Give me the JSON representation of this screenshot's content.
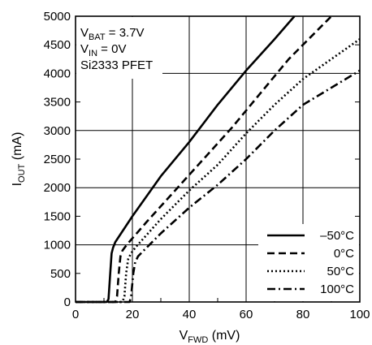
{
  "chart_data": {
    "type": "line",
    "xlabel": {
      "main": "V",
      "sub": "FWD",
      "unit": " (mV)"
    },
    "ylabel": {
      "main": "I",
      "sub": "OUT",
      "unit": " (mA)"
    },
    "xlim": [
      0,
      100
    ],
    "ylim": [
      0,
      5000
    ],
    "x_ticks": [
      "0",
      "20",
      "40",
      "60",
      "80",
      "100"
    ],
    "y_ticks": [
      "0",
      "500",
      "1000",
      "1500",
      "2000",
      "2500",
      "3000",
      "3500",
      "4000",
      "4500",
      "5000"
    ],
    "grid": true,
    "legend_position": "bottom-right",
    "annotations": [
      {
        "main": "V",
        "sub": "BAT",
        "rest": " = 3.7V"
      },
      {
        "main": "V",
        "sub": "IN",
        "rest": " = 0V"
      },
      {
        "main": "Si2333 PFET",
        "sub": "",
        "rest": ""
      }
    ],
    "series": [
      {
        "name": "–50°C",
        "style": "solid",
        "points": [
          [
            0,
            0
          ],
          [
            11,
            0
          ],
          [
            11.6,
            50
          ],
          [
            12.2,
            500
          ],
          [
            12.7,
            850
          ],
          [
            13.2,
            950
          ],
          [
            14,
            1050
          ],
          [
            20,
            1500
          ],
          [
            30,
            2200
          ],
          [
            40,
            2800
          ],
          [
            50,
            3450
          ],
          [
            60,
            4050
          ],
          [
            70,
            4600
          ],
          [
            77,
            5000
          ]
        ]
      },
      {
        "name": "0°C",
        "style": "dash",
        "points": [
          [
            0,
            0
          ],
          [
            14,
            0
          ],
          [
            14.6,
            100
          ],
          [
            15.2,
            500
          ],
          [
            15.8,
            800
          ],
          [
            16.5,
            900
          ],
          [
            18,
            1000
          ],
          [
            25,
            1400
          ],
          [
            35,
            1950
          ],
          [
            45,
            2500
          ],
          [
            55,
            3050
          ],
          [
            65,
            3650
          ],
          [
            75,
            4250
          ],
          [
            85,
            4750
          ],
          [
            90,
            5000
          ]
        ]
      },
      {
        "name": "50°C",
        "style": "dot",
        "points": [
          [
            0,
            0
          ],
          [
            16.5,
            0
          ],
          [
            17.2,
            100
          ],
          [
            17.8,
            500
          ],
          [
            18.5,
            750
          ],
          [
            19.5,
            850
          ],
          [
            21,
            950
          ],
          [
            30,
            1450
          ],
          [
            40,
            1950
          ],
          [
            50,
            2400
          ],
          [
            60,
            2950
          ],
          [
            70,
            3450
          ],
          [
            80,
            3900
          ],
          [
            90,
            4250
          ],
          [
            100,
            4600
          ]
        ]
      },
      {
        "name": "100°C",
        "style": "dashdot",
        "points": [
          [
            0,
            0
          ],
          [
            19,
            0
          ],
          [
            19.5,
            80
          ],
          [
            20.3,
            500
          ],
          [
            21,
            700
          ],
          [
            22,
            800
          ],
          [
            24,
            900
          ],
          [
            30,
            1200
          ],
          [
            40,
            1650
          ],
          [
            50,
            2050
          ],
          [
            60,
            2500
          ],
          [
            70,
            3000
          ],
          [
            80,
            3450
          ],
          [
            90,
            3750
          ],
          [
            100,
            4050
          ]
        ]
      }
    ]
  }
}
